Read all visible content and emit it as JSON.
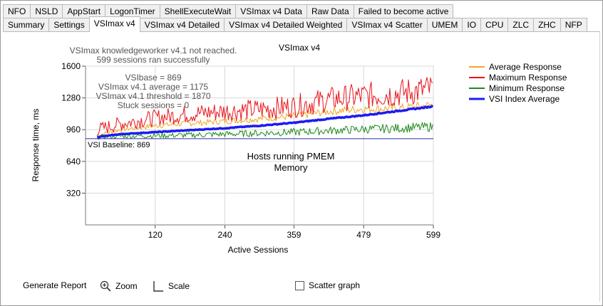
{
  "tabs_row1": [
    "NFO",
    "NSLD",
    "AppStart",
    "LogonTimer",
    "ShellExecuteWait",
    "VSImax v4 Data",
    "Raw Data",
    "Failed to become active"
  ],
  "tabs_row2": [
    "Summary",
    "Settings",
    "VSImax v4",
    "VSImax v4 Detailed",
    "VSImax v4 Detailed Weighted",
    "VSImax v4 Scatter",
    "UMEM",
    "IO",
    "CPU",
    "ZLC",
    "ZHC",
    "NFP"
  ],
  "active_tab": "VSImax v4",
  "chart_data": {
    "type": "line",
    "title": "VSImax v4",
    "xlabel": "Active Sessions",
    "ylabel": "Response time, ms",
    "xlim": [
      0,
      599
    ],
    "ylim": [
      0,
      1600
    ],
    "x_ticks": [
      "120",
      "240",
      "359",
      "479",
      "599"
    ],
    "y_ticks": [
      "320",
      "640",
      "960",
      "1280",
      "1600"
    ],
    "grid": true,
    "legend_position": "right",
    "notes": [
      "VSImax knowledgeworker v4.1 not reached.",
      "599 sessions ran successfully",
      "VSIbase = 869",
      "VSImax v4.1 average = 1175",
      "VSImax v4.1 threshold = 1870",
      "Stuck sessions = 0"
    ],
    "baseline_label": "VSI Baseline: 869",
    "baseline_value": 869,
    "annotation_lines": [
      "Hosts running PMEM",
      "Memory"
    ],
    "series": [
      {
        "name": "Average Response",
        "color": "#f5a623",
        "x": [
          20,
          60,
          120,
          180,
          240,
          300,
          359,
          420,
          479,
          540,
          599
        ],
        "y": [
          905,
          960,
          1000,
          1025,
          1045,
          1070,
          1095,
          1145,
          1170,
          1175,
          1210
        ]
      },
      {
        "name": "Maximum Response",
        "color": "#e8141b",
        "x": [
          20,
          60,
          120,
          180,
          240,
          300,
          359,
          420,
          479,
          540,
          599
        ],
        "y": [
          960,
          1020,
          1080,
          1120,
          1145,
          1165,
          1195,
          1265,
          1300,
          1330,
          1370
        ]
      },
      {
        "name": "Minimum Response",
        "color": "#1d8a1d",
        "x": [
          20,
          60,
          120,
          180,
          240,
          300,
          359,
          420,
          479,
          540,
          599
        ],
        "y": [
          885,
          895,
          900,
          905,
          915,
          925,
          935,
          950,
          965,
          975,
          990
        ]
      },
      {
        "name": "VSI Index Average",
        "color": "#1c1cf0",
        "x": [
          20,
          60,
          120,
          180,
          240,
          300,
          359,
          420,
          479,
          540,
          599
        ],
        "y": [
          885,
          915,
          935,
          955,
          975,
          1000,
          1030,
          1070,
          1105,
          1150,
          1195
        ]
      }
    ]
  },
  "controls": {
    "generate_report": "Generate Report",
    "zoom": "Zoom",
    "scale": "Scale",
    "scatter_graph": "Scatter graph"
  }
}
